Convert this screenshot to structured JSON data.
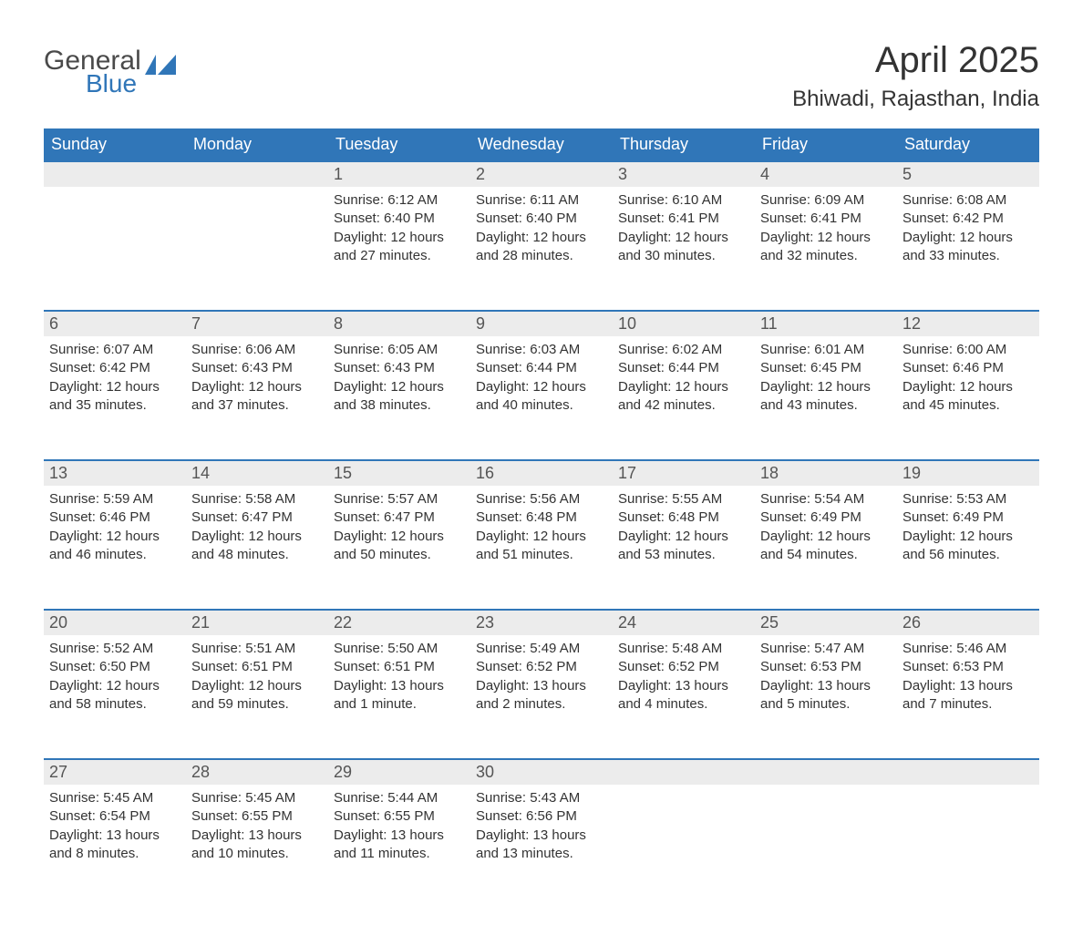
{
  "brand": {
    "word1": "General",
    "word2": "Blue",
    "logo_color": "#3076b8",
    "text_color": "#4a4a4a"
  },
  "title": "April 2025",
  "location": "Bhiwadi, Rajasthan, India",
  "header_bg": "#3076b8",
  "header_fg": "#ffffff",
  "daynum_bg": "#ececec",
  "rule_color": "#3076b8",
  "columns": [
    "Sunday",
    "Monday",
    "Tuesday",
    "Wednesday",
    "Thursday",
    "Friday",
    "Saturday"
  ],
  "weeks": [
    [
      null,
      null,
      {
        "n": "1",
        "sunrise": "6:12 AM",
        "sunset": "6:40 PM",
        "daylight": "12 hours and 27 minutes."
      },
      {
        "n": "2",
        "sunrise": "6:11 AM",
        "sunset": "6:40 PM",
        "daylight": "12 hours and 28 minutes."
      },
      {
        "n": "3",
        "sunrise": "6:10 AM",
        "sunset": "6:41 PM",
        "daylight": "12 hours and 30 minutes."
      },
      {
        "n": "4",
        "sunrise": "6:09 AM",
        "sunset": "6:41 PM",
        "daylight": "12 hours and 32 minutes."
      },
      {
        "n": "5",
        "sunrise": "6:08 AM",
        "sunset": "6:42 PM",
        "daylight": "12 hours and 33 minutes."
      }
    ],
    [
      {
        "n": "6",
        "sunrise": "6:07 AM",
        "sunset": "6:42 PM",
        "daylight": "12 hours and 35 minutes."
      },
      {
        "n": "7",
        "sunrise": "6:06 AM",
        "sunset": "6:43 PM",
        "daylight": "12 hours and 37 minutes."
      },
      {
        "n": "8",
        "sunrise": "6:05 AM",
        "sunset": "6:43 PM",
        "daylight": "12 hours and 38 minutes."
      },
      {
        "n": "9",
        "sunrise": "6:03 AM",
        "sunset": "6:44 PM",
        "daylight": "12 hours and 40 minutes."
      },
      {
        "n": "10",
        "sunrise": "6:02 AM",
        "sunset": "6:44 PM",
        "daylight": "12 hours and 42 minutes."
      },
      {
        "n": "11",
        "sunrise": "6:01 AM",
        "sunset": "6:45 PM",
        "daylight": "12 hours and 43 minutes."
      },
      {
        "n": "12",
        "sunrise": "6:00 AM",
        "sunset": "6:46 PM",
        "daylight": "12 hours and 45 minutes."
      }
    ],
    [
      {
        "n": "13",
        "sunrise": "5:59 AM",
        "sunset": "6:46 PM",
        "daylight": "12 hours and 46 minutes."
      },
      {
        "n": "14",
        "sunrise": "5:58 AM",
        "sunset": "6:47 PM",
        "daylight": "12 hours and 48 minutes."
      },
      {
        "n": "15",
        "sunrise": "5:57 AM",
        "sunset": "6:47 PM",
        "daylight": "12 hours and 50 minutes."
      },
      {
        "n": "16",
        "sunrise": "5:56 AM",
        "sunset": "6:48 PM",
        "daylight": "12 hours and 51 minutes."
      },
      {
        "n": "17",
        "sunrise": "5:55 AM",
        "sunset": "6:48 PM",
        "daylight": "12 hours and 53 minutes."
      },
      {
        "n": "18",
        "sunrise": "5:54 AM",
        "sunset": "6:49 PM",
        "daylight": "12 hours and 54 minutes."
      },
      {
        "n": "19",
        "sunrise": "5:53 AM",
        "sunset": "6:49 PM",
        "daylight": "12 hours and 56 minutes."
      }
    ],
    [
      {
        "n": "20",
        "sunrise": "5:52 AM",
        "sunset": "6:50 PM",
        "daylight": "12 hours and 58 minutes."
      },
      {
        "n": "21",
        "sunrise": "5:51 AM",
        "sunset": "6:51 PM",
        "daylight": "12 hours and 59 minutes."
      },
      {
        "n": "22",
        "sunrise": "5:50 AM",
        "sunset": "6:51 PM",
        "daylight": "13 hours and 1 minute."
      },
      {
        "n": "23",
        "sunrise": "5:49 AM",
        "sunset": "6:52 PM",
        "daylight": "13 hours and 2 minutes."
      },
      {
        "n": "24",
        "sunrise": "5:48 AM",
        "sunset": "6:52 PM",
        "daylight": "13 hours and 4 minutes."
      },
      {
        "n": "25",
        "sunrise": "5:47 AM",
        "sunset": "6:53 PM",
        "daylight": "13 hours and 5 minutes."
      },
      {
        "n": "26",
        "sunrise": "5:46 AM",
        "sunset": "6:53 PM",
        "daylight": "13 hours and 7 minutes."
      }
    ],
    [
      {
        "n": "27",
        "sunrise": "5:45 AM",
        "sunset": "6:54 PM",
        "daylight": "13 hours and 8 minutes."
      },
      {
        "n": "28",
        "sunrise": "5:45 AM",
        "sunset": "6:55 PM",
        "daylight": "13 hours and 10 minutes."
      },
      {
        "n": "29",
        "sunrise": "5:44 AM",
        "sunset": "6:55 PM",
        "daylight": "13 hours and 11 minutes."
      },
      {
        "n": "30",
        "sunrise": "5:43 AM",
        "sunset": "6:56 PM",
        "daylight": "13 hours and 13 minutes."
      },
      null,
      null,
      null
    ]
  ],
  "labels": {
    "sunrise": "Sunrise: ",
    "sunset": "Sunset: ",
    "daylight": "Daylight: "
  }
}
